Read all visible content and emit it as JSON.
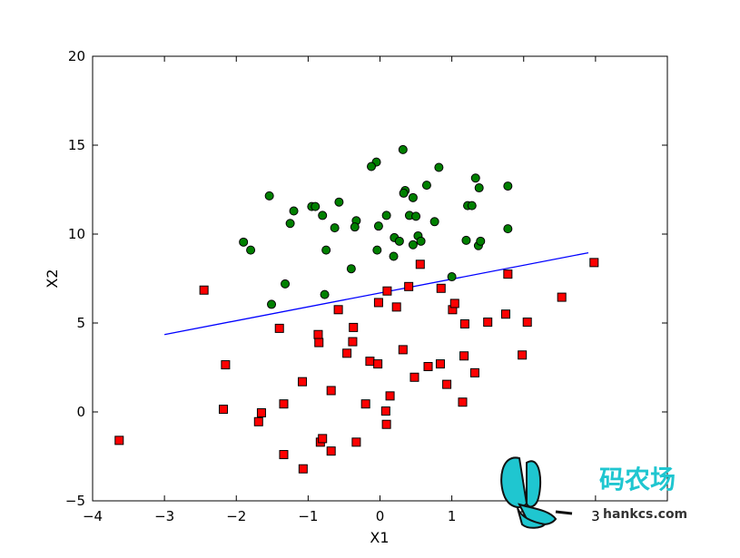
{
  "chart_data": {
    "type": "scatter",
    "xlabel": "X1",
    "ylabel": "X2",
    "xlim": [
      -4,
      4
    ],
    "ylim": [
      -5,
      20
    ],
    "xticks": [
      -4,
      -3,
      -2,
      -1,
      0,
      1,
      2,
      3
    ],
    "yticks": [
      -5,
      0,
      5,
      10,
      15,
      20
    ],
    "grid": false,
    "series": [
      {
        "marker": "circle",
        "color": "#008000",
        "points": [
          [
            0.32,
            14.75
          ],
          [
            -0.05,
            14.05
          ],
          [
            -0.12,
            13.8
          ],
          [
            0.82,
            13.75
          ],
          [
            1.33,
            13.15
          ],
          [
            1.38,
            12.6
          ],
          [
            1.78,
            12.7
          ],
          [
            0.35,
            12.45
          ],
          [
            0.33,
            12.3
          ],
          [
            0.46,
            12.05
          ],
          [
            0.65,
            12.75
          ],
          [
            -1.54,
            12.15
          ],
          [
            -0.57,
            11.8
          ],
          [
            -0.95,
            11.55
          ],
          [
            -0.9,
            11.55
          ],
          [
            -1.2,
            11.3
          ],
          [
            -0.8,
            11.05
          ],
          [
            0.09,
            11.05
          ],
          [
            0.41,
            11.05
          ],
          [
            0.5,
            11.0
          ],
          [
            1.22,
            11.6
          ],
          [
            1.28,
            11.6
          ],
          [
            -1.25,
            10.6
          ],
          [
            -0.33,
            10.75
          ],
          [
            -0.63,
            10.35
          ],
          [
            -0.35,
            10.4
          ],
          [
            -0.02,
            10.45
          ],
          [
            0.76,
            10.7
          ],
          [
            1.78,
            10.3
          ],
          [
            -1.9,
            9.55
          ],
          [
            -1.8,
            9.1
          ],
          [
            -0.75,
            9.1
          ],
          [
            -0.04,
            9.1
          ],
          [
            0.2,
            9.8
          ],
          [
            0.27,
            9.6
          ],
          [
            0.46,
            9.4
          ],
          [
            0.53,
            9.9
          ],
          [
            0.57,
            9.6
          ],
          [
            1.2,
            9.65
          ],
          [
            1.37,
            9.35
          ],
          [
            1.4,
            9.6
          ],
          [
            0.19,
            8.75
          ],
          [
            -0.4,
            8.05
          ],
          [
            1.0,
            7.6
          ],
          [
            -1.32,
            7.2
          ],
          [
            -0.77,
            6.6
          ],
          [
            -1.51,
            6.05
          ]
        ]
      },
      {
        "marker": "square",
        "color": "#ff0000",
        "points": [
          [
            -3.63,
            -1.6
          ],
          [
            -2.45,
            6.85
          ],
          [
            -2.15,
            2.65
          ],
          [
            -2.18,
            0.15
          ],
          [
            -1.65,
            -0.05
          ],
          [
            -1.69,
            -0.55
          ],
          [
            -1.4,
            4.7
          ],
          [
            -1.34,
            0.45
          ],
          [
            -1.34,
            -2.4
          ],
          [
            -1.08,
            1.7
          ],
          [
            -1.07,
            -3.2
          ],
          [
            -0.86,
            4.35
          ],
          [
            -0.85,
            3.9
          ],
          [
            -0.83,
            -1.7
          ],
          [
            -0.8,
            -1.5
          ],
          [
            -0.68,
            1.2
          ],
          [
            -0.68,
            -2.2
          ],
          [
            -0.58,
            5.75
          ],
          [
            -0.46,
            3.3
          ],
          [
            -0.37,
            4.75
          ],
          [
            -0.38,
            3.95
          ],
          [
            -0.33,
            -1.7
          ],
          [
            -0.2,
            0.45
          ],
          [
            -0.14,
            2.85
          ],
          [
            -0.02,
            6.15
          ],
          [
            -0.03,
            2.7
          ],
          [
            0.08,
            0.05
          ],
          [
            0.09,
            -0.7
          ],
          [
            0.1,
            6.8
          ],
          [
            0.14,
            0.9
          ],
          [
            0.23,
            5.9
          ],
          [
            0.32,
            3.5
          ],
          [
            0.4,
            7.05
          ],
          [
            0.48,
            1.95
          ],
          [
            0.56,
            8.3
          ],
          [
            0.67,
            2.55
          ],
          [
            0.84,
            2.7
          ],
          [
            0.85,
            6.95
          ],
          [
            0.93,
            1.55
          ],
          [
            1.01,
            5.75
          ],
          [
            1.04,
            6.1
          ],
          [
            1.15,
            0.55
          ],
          [
            1.17,
            3.15
          ],
          [
            1.18,
            4.95
          ],
          [
            1.32,
            2.2
          ],
          [
            1.5,
            5.05
          ],
          [
            1.75,
            5.5
          ],
          [
            1.78,
            7.75
          ],
          [
            1.98,
            3.2
          ],
          [
            2.05,
            5.05
          ],
          [
            2.53,
            6.45
          ],
          [
            2.98,
            8.4
          ]
        ]
      }
    ],
    "line": {
      "color": "#0000ff",
      "points": [
        [
          -3.0,
          4.35
        ],
        [
          2.9,
          8.95
        ]
      ]
    }
  },
  "watermark": {
    "text": "码农场",
    "url": "hankcs.com",
    "color": "#1fc6d0"
  }
}
